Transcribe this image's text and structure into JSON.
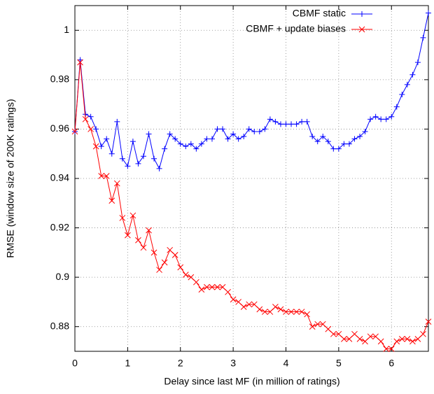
{
  "chart_data": {
    "type": "line",
    "x_label": "Delay since last MF (in million of ratings)",
    "y_label": "RMSE (window size of 200K ratings)",
    "x": [
      0,
      0.1,
      0.2,
      0.3,
      0.4,
      0.5,
      0.6,
      0.7,
      0.8,
      0.9,
      1,
      1.1,
      1.2,
      1.3,
      1.4,
      1.5,
      1.6,
      1.7,
      1.8,
      1.9,
      2,
      2.1,
      2.2,
      2.3,
      2.4,
      2.5,
      2.6,
      2.7,
      2.8,
      2.9,
      3,
      3.1,
      3.2,
      3.3,
      3.4,
      3.5,
      3.6,
      3.7,
      3.8,
      3.9,
      4,
      4.1,
      4.2,
      4.3,
      4.4,
      4.5,
      4.6,
      4.7,
      4.8,
      4.9,
      5,
      5.1,
      5.2,
      5.3,
      5.4,
      5.5,
      5.6,
      5.7,
      5.8,
      5.9,
      6,
      6.1,
      6.2,
      6.3,
      6.4,
      6.5,
      6.6,
      6.7
    ],
    "series": [
      {
        "name": "CBMF static",
        "color": "#0000ff",
        "marker": "plus",
        "values": [
          0.959,
          0.988,
          0.966,
          0.965,
          0.96,
          0.953,
          0.956,
          0.95,
          0.963,
          0.948,
          0.945,
          0.955,
          0.946,
          0.949,
          0.958,
          0.948,
          0.944,
          0.952,
          0.958,
          0.956,
          0.954,
          0.953,
          0.954,
          0.952,
          0.954,
          0.956,
          0.956,
          0.96,
          0.96,
          0.956,
          0.958,
          0.956,
          0.957,
          0.96,
          0.959,
          0.959,
          0.96,
          0.964,
          0.963,
          0.962,
          0.962,
          0.962,
          0.962,
          0.963,
          0.963,
          0.957,
          0.955,
          0.957,
          0.955,
          0.952,
          0.952,
          0.954,
          0.954,
          0.956,
          0.957,
          0.959,
          0.964,
          0.965,
          0.964,
          0.964,
          0.965,
          0.969,
          0.974,
          0.978,
          0.982,
          0.987,
          0.997,
          1.007
        ]
      },
      {
        "name": "CBMF + update biases",
        "color": "#ff0000",
        "marker": "cross",
        "values": [
          0.959,
          0.987,
          0.964,
          0.96,
          0.953,
          0.941,
          0.941,
          0.931,
          0.938,
          0.924,
          0.917,
          0.925,
          0.915,
          0.912,
          0.919,
          0.91,
          0.903,
          0.906,
          0.911,
          0.909,
          0.904,
          0.901,
          0.9,
          0.898,
          0.895,
          0.896,
          0.896,
          0.896,
          0.896,
          0.894,
          0.891,
          0.89,
          0.888,
          0.889,
          0.889,
          0.887,
          0.886,
          0.886,
          0.888,
          0.887,
          0.886,
          0.886,
          0.886,
          0.886,
          0.885,
          0.88,
          0.881,
          0.881,
          0.879,
          0.877,
          0.877,
          0.875,
          0.875,
          0.877,
          0.875,
          0.874,
          0.876,
          0.876,
          0.874,
          0.871,
          0.871,
          0.874,
          0.875,
          0.875,
          0.874,
          0.875,
          0.877,
          0.882
        ]
      }
    ],
    "xlim": [
      0,
      6.7
    ],
    "ylim": [
      0.87,
      1.01
    ],
    "xticks": [
      0,
      1,
      2,
      3,
      4,
      5,
      6
    ],
    "yticks": [
      0.88,
      0.9,
      0.92,
      0.94,
      0.96,
      0.98,
      1
    ],
    "grid": true,
    "legend": "top-right"
  }
}
